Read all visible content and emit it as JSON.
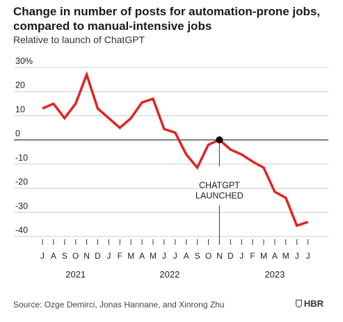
{
  "title": "Change in number of posts for automation-prone jobs, compared to manual-intensive jobs",
  "subtitle": "Relative to launch of ChatGPT",
  "source": "Source: Ozge Demirci, Jonas Hannane, and Xinrong Zhu",
  "logo": "HBR",
  "colors": {
    "line": "#e32222",
    "axis": "#333333",
    "grid": "#cccccc",
    "text": "#222222"
  },
  "chart_data": {
    "type": "line",
    "title": "Change in number of posts for automation-prone jobs, compared to manual-intensive jobs",
    "subtitle": "Relative to launch of ChatGPT",
    "xlabel": "",
    "ylabel": "",
    "ylim": [
      -40,
      30
    ],
    "grid": true,
    "y_ticks": [
      30,
      20,
      10,
      0,
      -10,
      -20,
      -30,
      -40
    ],
    "y_tick_labels": [
      "30%",
      "20",
      "10",
      "0",
      "-10",
      "-20",
      "-30",
      "-40"
    ],
    "x": [
      "Jul 2021",
      "Aug 2021",
      "Sep 2021",
      "Oct 2021",
      "Nov 2021",
      "Dec 2021",
      "Jan 2022",
      "Feb 2022",
      "Mar 2022",
      "Apr 2022",
      "May 2022",
      "Jun 2022",
      "Jul 2022",
      "Aug 2022",
      "Sep 2022",
      "Oct 2022",
      "Nov 2022",
      "Dec 2022",
      "Jan 2023",
      "Feb 2023",
      "Mar 2023",
      "Apr 2023",
      "May 2023",
      "Jun 2023",
      "Jul 2023"
    ],
    "x_tick_labels": [
      "J",
      "A",
      "S",
      "O",
      "N",
      "D",
      "J",
      "F",
      "M",
      "A",
      "M",
      "J",
      "J",
      "A",
      "S",
      "O",
      "N",
      "D",
      "J",
      "F",
      "M",
      "A",
      "M",
      "J",
      "J"
    ],
    "year_labels": [
      {
        "label": "2021",
        "index": 3
      },
      {
        "label": "2022",
        "index": 11.5
      },
      {
        "label": "2023",
        "index": 21
      }
    ],
    "series": [
      {
        "values": [
          13,
          15,
          9,
          15,
          27,
          13,
          9,
          5,
          9,
          15.5,
          17,
          4.5,
          3,
          -6,
          -11.5,
          -2,
          0,
          -4,
          -6,
          -9,
          -11.5,
          -21.5,
          -24,
          -35.5,
          -34
        ]
      }
    ],
    "annotation": {
      "text_lines": [
        "CHATGPT",
        "LAUNCHED"
      ],
      "index": 16,
      "value": 0
    }
  }
}
